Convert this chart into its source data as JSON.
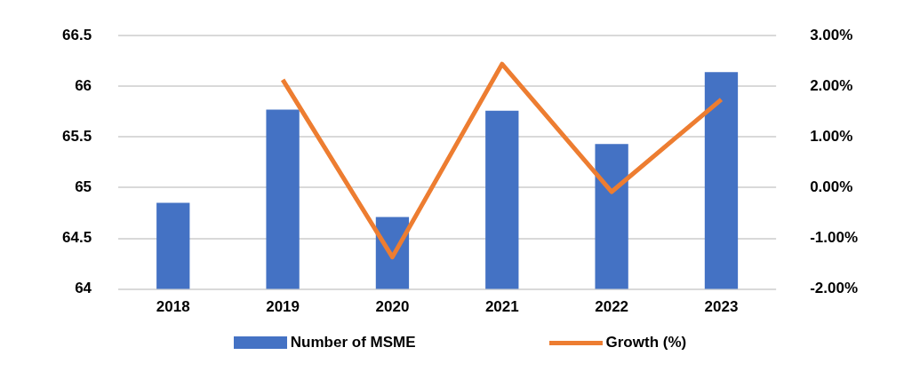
{
  "chart_data": {
    "type": "bar",
    "categories": [
      "2018",
      "2019",
      "2020",
      "2021",
      "2022",
      "2023"
    ],
    "series": [
      {
        "name": "Number of MSME",
        "color": "#4472c4",
        "values": [
          64.85,
          65.77,
          64.71,
          65.76,
          65.43,
          66.14
        ]
      },
      {
        "name": "Growth (%)",
        "type": "line",
        "axis": "y2",
        "color": "#ed7d31",
        "values": [
          null,
          2.13,
          -1.37,
          2.44,
          -0.08,
          1.74
        ]
      }
    ],
    "ylim": [
      64,
      66.5
    ],
    "yticks": [
      64,
      64.5,
      65,
      65.5,
      66,
      66.5
    ],
    "y2lim": [
      -2,
      3
    ],
    "y2ticks": [
      {
        "value": -2,
        "label": "-2.00%"
      },
      {
        "value": -1,
        "label": "-1.00%"
      },
      {
        "value": 0,
        "label": "0.00%"
      },
      {
        "value": 1,
        "label": "1.00%"
      },
      {
        "value": 2,
        "label": "2.00%"
      },
      {
        "value": 3,
        "label": "3.00%"
      }
    ],
    "grid": "y",
    "legend": "bottom",
    "marker": "none"
  }
}
